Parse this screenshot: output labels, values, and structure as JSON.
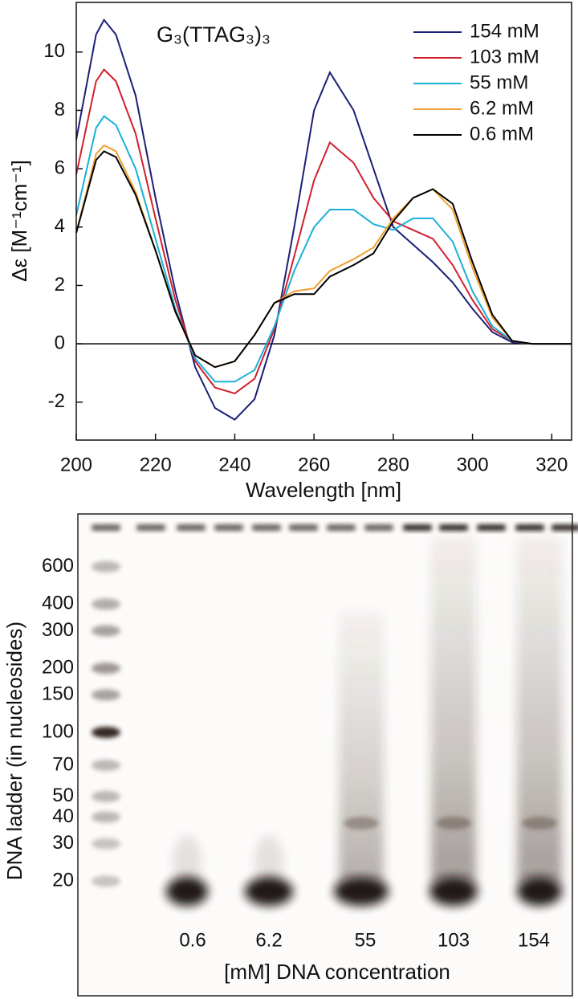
{
  "chart_data": [
    {
      "type": "line",
      "title": "G₃(TTAG₃)₃",
      "x_label": "Wavelength [nm]",
      "y_label": "Δε [M⁻¹cm⁻¹]",
      "x": [
        200,
        205,
        207,
        210,
        215,
        220,
        225,
        230,
        235,
        240,
        245,
        250,
        255,
        260,
        264,
        270,
        275,
        280,
        285,
        290,
        295,
        300,
        305,
        310,
        315,
        320,
        325
      ],
      "series": [
        {
          "name": "154 mM",
          "color": "#1b1f78",
          "values": [
            7.0,
            10.6,
            11.1,
            10.6,
            8.5,
            5.0,
            1.8,
            -0.8,
            -2.2,
            -2.6,
            -1.9,
            0.3,
            4.0,
            8.0,
            9.3,
            8.0,
            6.0,
            4.0,
            3.4,
            2.8,
            2.1,
            1.2,
            0.4,
            0.05,
            0,
            0,
            0
          ]
        },
        {
          "name": "103 mM",
          "color": "#d0202e",
          "values": [
            5.8,
            9.0,
            9.4,
            9.0,
            7.2,
            4.3,
            1.5,
            -0.6,
            -1.5,
            -1.7,
            -1.2,
            0.5,
            3.0,
            5.6,
            6.9,
            6.2,
            5.0,
            4.2,
            3.9,
            3.6,
            2.7,
            1.5,
            0.5,
            0.1,
            0,
            0,
            0
          ]
        },
        {
          "name": "55 mM",
          "color": "#1ab0d8",
          "values": [
            4.4,
            7.4,
            7.8,
            7.5,
            6.0,
            3.6,
            1.2,
            -0.5,
            -1.3,
            -1.3,
            -0.9,
            0.6,
            2.5,
            4.0,
            4.6,
            4.6,
            4.1,
            3.9,
            4.3,
            4.3,
            3.5,
            1.8,
            0.6,
            0.1,
            0,
            0,
            0
          ]
        },
        {
          "name": "6.2 mM",
          "color": "#f0a030",
          "values": [
            3.8,
            6.5,
            6.8,
            6.6,
            5.2,
            3.2,
            1.1,
            -0.4,
            -0.8,
            -0.6,
            0.3,
            1.4,
            1.8,
            1.9,
            2.5,
            2.9,
            3.3,
            4.3,
            5.0,
            5.3,
            4.6,
            2.6,
            0.9,
            0.1,
            0,
            0,
            0
          ]
        },
        {
          "name": "0.6 mM",
          "color": "#000000",
          "values": [
            3.8,
            6.3,
            6.6,
            6.4,
            5.1,
            3.2,
            1.1,
            -0.4,
            -0.8,
            -0.6,
            0.3,
            1.4,
            1.7,
            1.7,
            2.3,
            2.7,
            3.1,
            4.2,
            5.0,
            5.3,
            4.8,
            2.8,
            1.0,
            0.1,
            0,
            0,
            0
          ]
        }
      ],
      "xlim": [
        200,
        325
      ],
      "xticks": [
        200,
        220,
        240,
        260,
        280,
        300,
        320
      ],
      "ylim": [
        -3.3,
        11.7
      ],
      "yticks": [
        -2,
        0,
        2,
        4,
        6,
        8,
        10
      ],
      "zero_line": true,
      "legend": "top-right"
    },
    {
      "type": "gel",
      "y_label": "DNA ladder (in nucleosides)",
      "x_label": "[mM] DNA concentration",
      "categories": [
        "0.6",
        "6.2",
        "55",
        "103",
        "154"
      ],
      "ylim": [
        16,
        900
      ],
      "log_scale": true,
      "yticks": [
        20,
        30,
        40,
        50,
        70,
        100,
        150,
        200,
        300,
        400,
        600
      ]
    }
  ]
}
